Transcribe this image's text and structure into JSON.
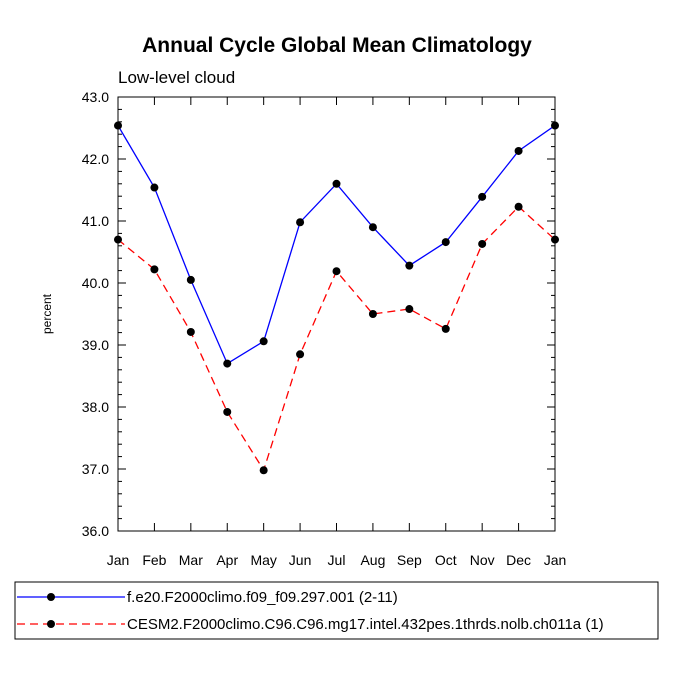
{
  "chart_data": {
    "type": "line",
    "title": "Annual Cycle Global Mean Climatology",
    "subtitle": "Low-level cloud",
    "xlabel": "",
    "ylabel": "percent",
    "categories": [
      "Jan",
      "Feb",
      "Mar",
      "Apr",
      "May",
      "Jun",
      "Jul",
      "Aug",
      "Sep",
      "Oct",
      "Nov",
      "Dec",
      "Jan"
    ],
    "ylim": [
      36.0,
      43.0
    ],
    "yticks": [
      36.0,
      37.0,
      38.0,
      39.0,
      40.0,
      41.0,
      42.0,
      43.0
    ],
    "ytick_labels": [
      "36.0",
      "37.0",
      "38.0",
      "39.0",
      "40.0",
      "41.0",
      "42.0",
      "43.0"
    ],
    "grid": false,
    "legend_position": "bottom",
    "series": [
      {
        "name": "f.e20.F2000climo.f09_f09.297.001 (2-11)",
        "color": "#0000ff",
        "line_style": "solid",
        "marker": "filled-circle",
        "values": [
          42.54,
          41.54,
          40.05,
          38.7,
          39.06,
          40.98,
          41.6,
          40.9,
          40.28,
          40.66,
          41.39,
          42.13,
          42.54
        ]
      },
      {
        "name": "CESM2.F2000climo.C96.C96.mg17.intel.432pes.1thrds.nolb.ch011a (1)",
        "color": "#ff0000",
        "line_style": "dashed",
        "marker": "filled-circle",
        "values": [
          40.7,
          40.22,
          39.21,
          37.92,
          36.98,
          38.85,
          40.19,
          39.5,
          39.58,
          39.26,
          40.63,
          41.23,
          40.7
        ]
      }
    ]
  }
}
